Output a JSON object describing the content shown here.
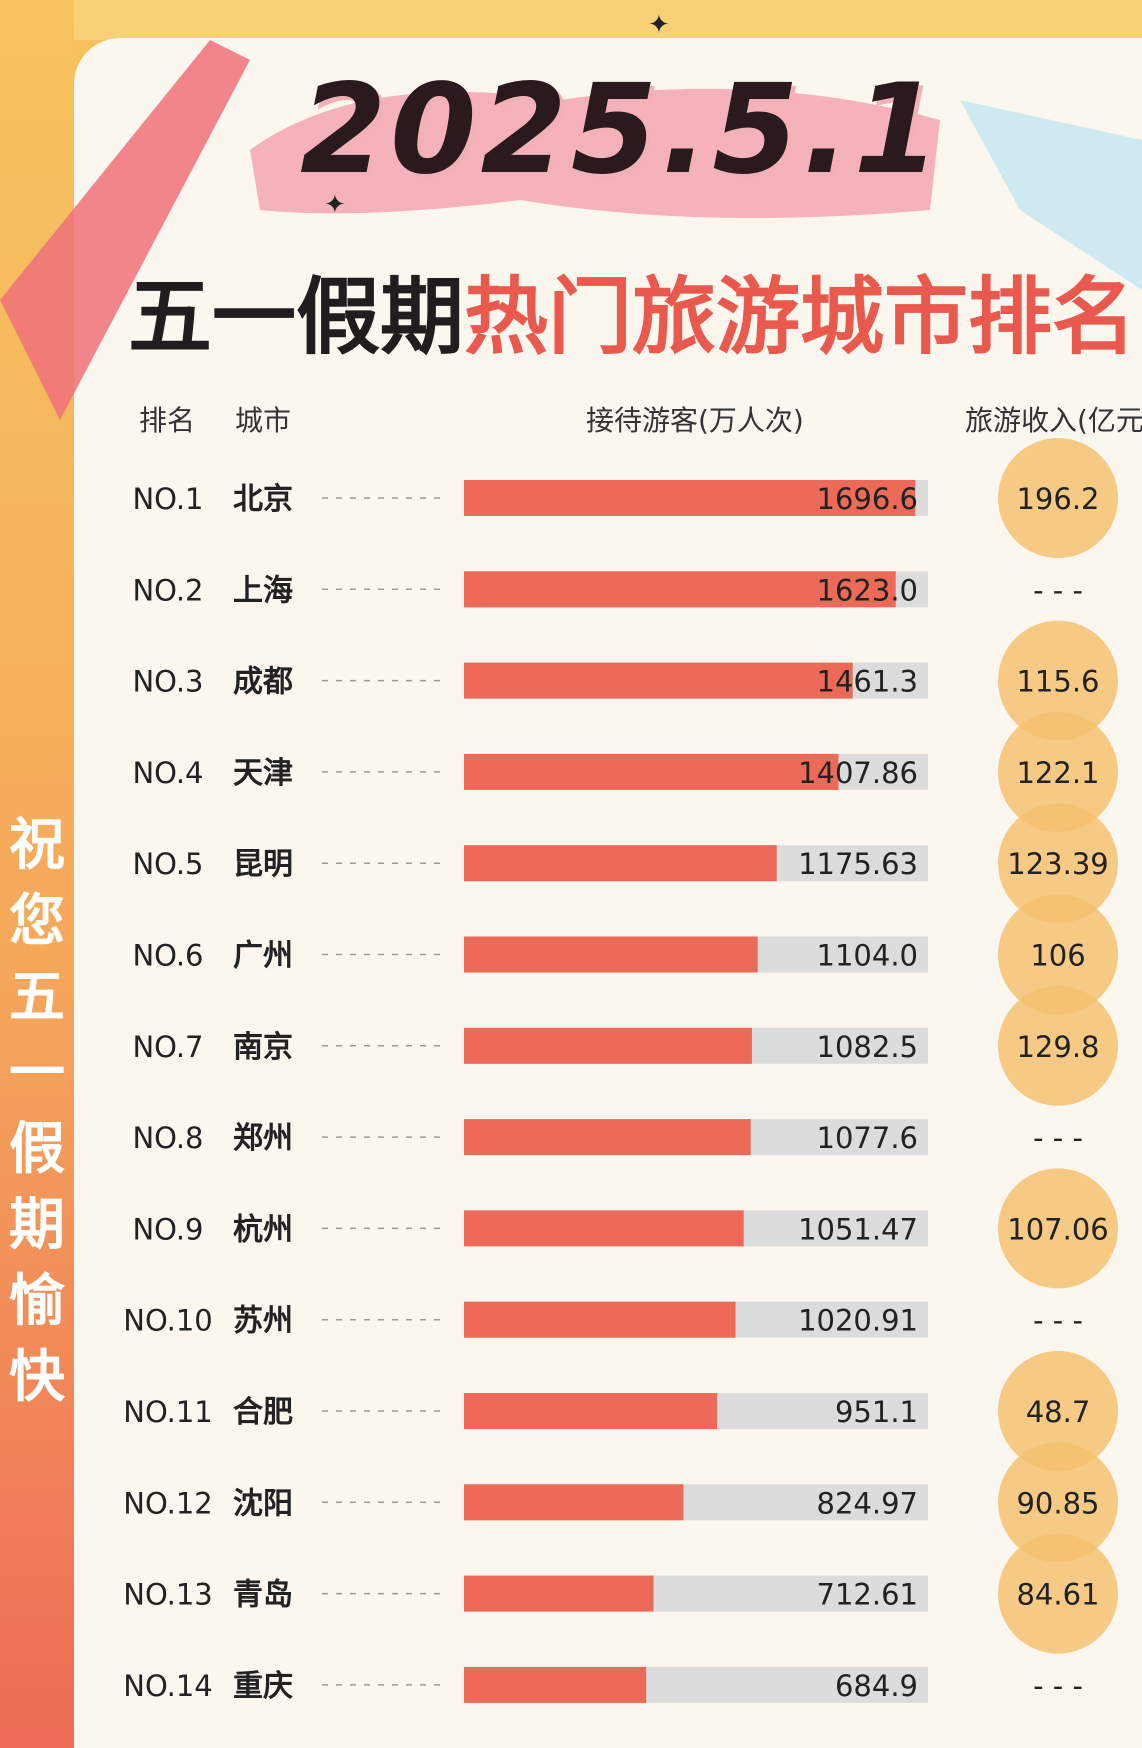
{
  "header": {
    "year_title": "2025.5.1",
    "title_part1": "五一假期",
    "title_part2": "热门旅游城市排名"
  },
  "side_text": "祝您五一假期愉快",
  "columns": {
    "rank": "排名",
    "city": "城市",
    "visitors": "接待游客(万人次)",
    "revenue": "旅游收入(亿元)"
  },
  "chart_data": {
    "type": "bar",
    "orientation": "horizontal",
    "categories": [
      "北京",
      "上海",
      "成都",
      "天津",
      "昆明",
      "广州",
      "南京",
      "郑州",
      "杭州",
      "苏州",
      "合肥",
      "沈阳",
      "青岛",
      "重庆"
    ],
    "ranks": [
      "NO.1",
      "NO.2",
      "NO.3",
      "NO.4",
      "NO.5",
      "NO.6",
      "NO.7",
      "NO.8",
      "NO.9",
      "NO.10",
      "NO.11",
      "NO.12",
      "NO.13",
      "NO.14"
    ],
    "values": [
      1696.6,
      1623.0,
      1461.3,
      1407.86,
      1175.63,
      1104.0,
      1082.5,
      1077.6,
      1051.47,
      1020.91,
      951.1,
      824.97,
      712.61,
      684.9
    ],
    "value_labels": [
      "1696.6",
      "1623.0",
      "1461.3",
      "1407.86",
      "1175.63",
      "1104.0",
      "1082.5",
      "1077.6",
      "1051.47",
      "1020.91",
      "951.1",
      "824.97",
      "712.61",
      "684.9"
    ],
    "revenue": [
      196.2,
      null,
      115.6,
      122.1,
      123.39,
      106,
      129.8,
      null,
      107.06,
      null,
      48.7,
      90.85,
      84.61,
      null
    ],
    "revenue_labels": [
      "196.2",
      "- - -",
      "115.6",
      "122.1",
      "123.39",
      "106",
      "129.8",
      "- - -",
      "107.06",
      "- - -",
      "48.7",
      "90.85",
      "84.61",
      "- - -"
    ],
    "xlim": [
      0,
      2000
    ],
    "grid": false,
    "legend": "none",
    "colors": {
      "bar": "#ee6a58",
      "track": "#dcdcdc",
      "bubble": "#f4bf6c",
      "card": "#fbf7ef"
    }
  }
}
